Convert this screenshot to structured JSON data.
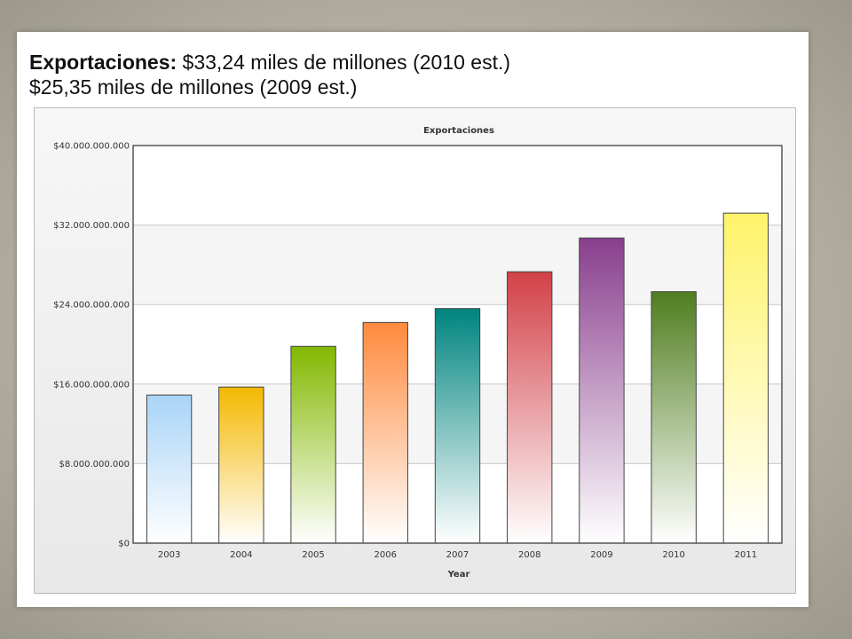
{
  "headline": {
    "label": "Exportaciones:",
    "line1_value": "$33,24 miles de millones (2010 est.)",
    "line2": "$25,35 miles de millones (2009 est.)"
  },
  "chart_data": {
    "type": "bar",
    "title": "Exportaciones",
    "xlabel": "Year",
    "ylabel": "",
    "ylim": [
      0,
      40000000000
    ],
    "yticks": [
      {
        "value": 0,
        "label": "$0"
      },
      {
        "value": 8000000000,
        "label": "$8.000.000.000"
      },
      {
        "value": 16000000000,
        "label": "$16.000.000.000"
      },
      {
        "value": 24000000000,
        "label": "$24.000.000.000"
      },
      {
        "value": 32000000000,
        "label": "$32.000.000.000"
      },
      {
        "value": 40000000000,
        "label": "$40.000.000.000"
      }
    ],
    "categories": [
      "2003",
      "2004",
      "2005",
      "2006",
      "2007",
      "2008",
      "2009",
      "2010",
      "2011"
    ],
    "values": [
      14900000000,
      15700000000,
      19800000000,
      22200000000,
      23600000000,
      27300000000,
      30700000000,
      25300000000,
      33200000000
    ],
    "colors": [
      "#a9d4f7",
      "#f4b800",
      "#82b800",
      "#ff8a3d",
      "#00847f",
      "#d24148",
      "#893e8d",
      "#4f7e1f",
      "#fff36a"
    ],
    "grid": true,
    "legend": "none"
  }
}
